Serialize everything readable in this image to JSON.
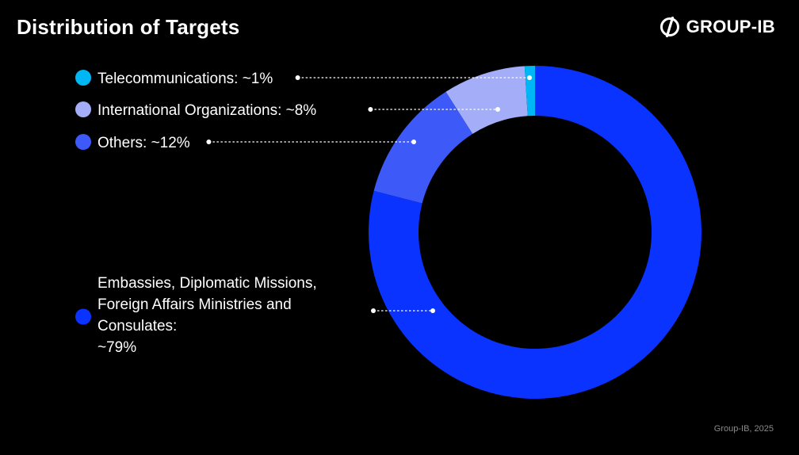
{
  "header": {
    "title": "Distribution of Targets",
    "brand": "GROUP-IB"
  },
  "footer": {
    "source": "Group-IB, 2025"
  },
  "chart_data": {
    "type": "pie",
    "style": "donut",
    "categories": [
      "Embassies, Diplomatic Missions, Foreign Affairs Ministries and Consulates",
      "Others",
      "International Organizations",
      "Telecommunications"
    ],
    "values": [
      79,
      12,
      8,
      1
    ],
    "colors": [
      "#0a33ff",
      "#3d5af8",
      "#a4adf7",
      "#00b7f5"
    ],
    "legend": [
      {
        "lines": [
          "Telecommunications: ~1%"
        ],
        "color": "#00b7f5"
      },
      {
        "lines": [
          "International Organizations: ~8%"
        ],
        "color": "#a4adf7"
      },
      {
        "lines": [
          "Others: ~12%"
        ],
        "color": "#3d5af8"
      },
      {
        "lines": [
          "Embassies, Diplomatic Missions,",
          "Foreign Affairs Ministries and",
          "Consulates:",
          "~79%"
        ],
        "color": "#0a33ff"
      }
    ],
    "legend_placement": "left"
  }
}
